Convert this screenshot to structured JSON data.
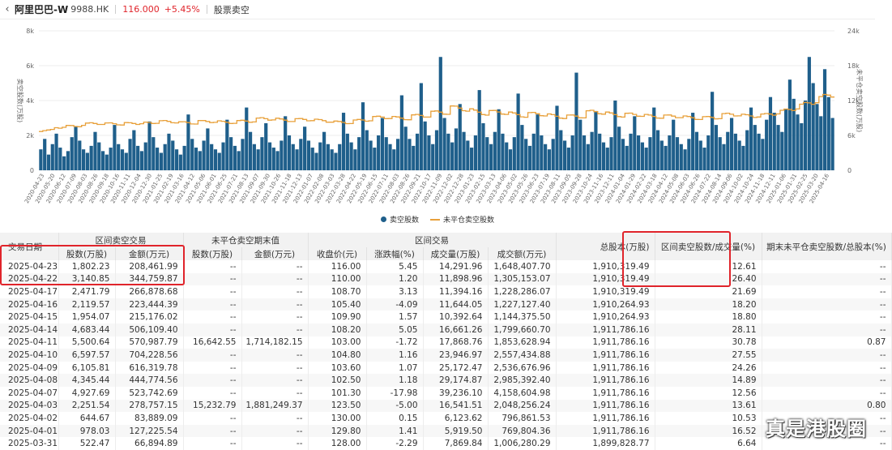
{
  "header": {
    "back": "‹",
    "name": "阿里巴巴-W",
    "code": "9988.HK",
    "price": "116.000",
    "change": "+5.45%",
    "page": "股票卖空"
  },
  "legend": {
    "bars": "卖空股数",
    "line": "未平仓卖空股数"
  },
  "colors": {
    "bar": "#1f5f8b",
    "line": "#e8a03a",
    "up": "#e0242b"
  },
  "chart_data": {
    "type": "bar",
    "left_axis": {
      "label": "卖空股数(万股)",
      "ticks": [
        "0",
        "2k",
        "4k",
        "6k",
        "8k"
      ],
      "range": [
        0,
        8000
      ]
    },
    "right_axis": {
      "label": "未平仓卖空股数(万股)",
      "ticks": [
        "0",
        "6k",
        "12k",
        "18k",
        "24k"
      ],
      "range": [
        0,
        24000
      ]
    },
    "x_labels": [
      "2020-04-23",
      "2020-05-20",
      "2020-06-12",
      "2020-07-09",
      "2020-08-03",
      "2020-08-26",
      "2020-09-18",
      "2020-10-16",
      "2020-11-11",
      "2020-12-04",
      "2020-12-30",
      "2021-01-25",
      "2021-02-19",
      "2021-03-16",
      "2021-04-12",
      "2021-05-06",
      "2021-06-01",
      "2021-06-25",
      "2021-07-21",
      "2021-08-13",
      "2021-09-07",
      "2021-09-30",
      "2021-10-26",
      "2021-11-18",
      "2021-12-13",
      "2022-01-07",
      "2022-02-08",
      "2022-03-03",
      "2022-03-28",
      "2022-04-22",
      "2022-05-19",
      "2022-06-15",
      "2022-07-11",
      "2022-08-03",
      "2022-08-26",
      "2022-09-21",
      "2022-10-17",
      "2022-11-09",
      "2022-12-02",
      "2022-12-28",
      "2023-01-23",
      "2023-02-15",
      "2023-03-13",
      "2023-04-06",
      "2023-05-02",
      "2023-05-26",
      "2023-06-23",
      "2023-07-19",
      "2023-08-11",
      "2023-09-05",
      "2023-09-28",
      "2023-10-24",
      "2023-11-16",
      "2023-12-11",
      "2024-01-04",
      "2024-01-29",
      "2024-02-22",
      "2024-03-18",
      "2024-04-12",
      "2024-05-08",
      "2024-06-03",
      "2024-06-26",
      "2024-07-22",
      "2024-08-14",
      "2024-09-06",
      "2024-10-02",
      "2024-10-24",
      "2024-11-18",
      "2024-12-11",
      "2025-01-06",
      "2025-01-31",
      "2025-02-25",
      "2025-03-20",
      "2025-04-16"
    ],
    "bars": [
      1200,
      1800,
      900,
      1500,
      2100,
      1300,
      800,
      1100,
      1900,
      2500,
      1700,
      1200,
      1000,
      1400,
      2200,
      1600,
      1100,
      900,
      1300,
      2600,
      1500,
      1200,
      1000,
      1800,
      2300,
      1400,
      1100,
      1600,
      2800,
      1900,
      1300,
      1000,
      1500,
      2100,
      1700,
      1200,
      900,
      1400,
      3200,
      1800,
      1300,
      1100,
      1700,
      2400,
      1500,
      1200,
      1000,
      1600,
      2900,
      1900,
      1400,
      1100,
      1800,
      3600,
      2200,
      1500,
      1200,
      1900,
      2700,
      1600,
      1300,
      1100,
      1700,
      3100,
      2000,
      1500,
      1200,
      1800,
      2500,
      1700,
      1300,
      1000,
      1600,
      2200,
      1500,
      1200,
      1000,
      1500,
      3300,
      2100,
      1600,
      1200,
      1900,
      3900,
      2300,
      1700,
      1300,
      2000,
      3000,
      1900,
      1500,
      1200,
      1800,
      4300,
      2500,
      1800,
      1400,
      2100,
      5000,
      2800,
      2000,
      1500,
      2300,
      6500,
      3000,
      2100,
      1600,
      2400,
      3800,
      2200,
      1700,
      1300,
      2000,
      4600,
      2700,
      1900,
      1500,
      2200,
      3500,
      2100,
      1600,
      1200,
      1900,
      4400,
      2600,
      1800,
      1400,
      2100,
      3200,
      2000,
      1500,
      1200,
      1800,
      3700,
      2300,
      1700,
      1300,
      2000,
      5600,
      2900,
      2000,
      1500,
      2200,
      3400,
      2100,
      1600,
      1300,
      1900,
      4000,
      2500,
      1800,
      1400,
      2100,
      3100,
      2000,
      1600,
      1300,
      1900,
      3600,
      2300,
      1700,
      1400,
      2000,
      2900,
      1900,
      1500,
      1200,
      1800,
      3300,
      2200,
      1700,
      1300,
      2000,
      4500,
      2600,
      1900,
      1500,
      2200,
      3000,
      2100,
      1700,
      1400,
      2300,
      3600,
      2600,
      2100,
      1800,
      2900,
      4200,
      3300,
      2600,
      2200,
      3500,
      5200,
      4100,
      3200,
      2700,
      4000,
      6500,
      5000,
      3800,
      3100,
      5800,
      4200,
      3000
    ]
  },
  "table": {
    "group_headers": {
      "date": "交易日期",
      "interval_short": "区间卖空交易",
      "open_short": "未平仓卖空期末值",
      "interval_trade": "区间交易",
      "total_shares": "总股本(万股)",
      "ratio_turnover": "区间卖空股数/成交量(%)",
      "ratio_total": "期末未平仓卖空股数/总股本(%)"
    },
    "sub_headers": {
      "shares": "股数(万股)",
      "amount": "金额(万元)",
      "open_shares": "股数(万股)",
      "open_amount": "金额(万元)",
      "close": "收盘价(元)",
      "pct": "涨跌幅(%)",
      "volume": "成交量(万股)",
      "turnover": "成交额(万元)"
    },
    "rows": [
      [
        "2025-04-23",
        "1,802.23",
        "208,461.99",
        "--",
        "--",
        "116.00",
        "5.45",
        "14,291.96",
        "1,648,407.70",
        "1,910,319.49",
        "12.61",
        "--"
      ],
      [
        "2025-04-22",
        "3,140.85",
        "344,759.87",
        "--",
        "--",
        "110.00",
        "1.20",
        "11,898.96",
        "1,305,153.07",
        "1,910,319.49",
        "26.40",
        "--"
      ],
      [
        "2025-04-17",
        "2,471.79",
        "266,878.68",
        "--",
        "--",
        "108.70",
        "3.13",
        "11,394.16",
        "1,228,286.07",
        "1,910,319.49",
        "21.69",
        "--"
      ],
      [
        "2025-04-16",
        "2,119.57",
        "223,444.39",
        "--",
        "--",
        "105.40",
        "-4.09",
        "11,644.05",
        "1,227,127.40",
        "1,910,264.93",
        "18.20",
        "--"
      ],
      [
        "2025-04-15",
        "1,954.07",
        "215,176.02",
        "--",
        "--",
        "109.90",
        "1.57",
        "10,392.64",
        "1,144,375.50",
        "1,910,264.93",
        "18.80",
        "--"
      ],
      [
        "2025-04-14",
        "4,683.44",
        "506,109.40",
        "--",
        "--",
        "108.20",
        "5.05",
        "16,661.26",
        "1,799,660.70",
        "1,911,786.16",
        "28.11",
        "--"
      ],
      [
        "2025-04-11",
        "5,500.64",
        "570,987.79",
        "16,642.55",
        "1,714,182.15",
        "103.00",
        "-1.72",
        "17,868.76",
        "1,853,628.94",
        "1,911,786.16",
        "30.78",
        "0.87"
      ],
      [
        "2025-04-10",
        "6,597.57",
        "704,228.56",
        "--",
        "--",
        "104.80",
        "1.16",
        "23,946.97",
        "2,557,434.88",
        "1,911,786.16",
        "27.55",
        "--"
      ],
      [
        "2025-04-09",
        "6,105.81",
        "616,319.78",
        "--",
        "--",
        "103.60",
        "1.07",
        "25,172.47",
        "2,536,676.96",
        "1,911,786.16",
        "24.26",
        "--"
      ],
      [
        "2025-04-08",
        "4,345.44",
        "444,774.56",
        "--",
        "--",
        "102.50",
        "1.18",
        "29,174.87",
        "2,985,392.40",
        "1,911,786.16",
        "14.89",
        "--"
      ],
      [
        "2025-04-07",
        "4,927.69",
        "523,742.69",
        "--",
        "--",
        "101.30",
        "-17.98",
        "39,236.10",
        "4,158,604.98",
        "1,911,786.16",
        "12.56",
        "--"
      ],
      [
        "2025-04-03",
        "2,251.54",
        "278,757.15",
        "15,232.79",
        "1,881,249.37",
        "123.50",
        "-5.00",
        "16,541.51",
        "2,048,256.24",
        "1,911,786.16",
        "13.61",
        "0.80"
      ],
      [
        "2025-04-02",
        "644.67",
        "83,889.09",
        "--",
        "--",
        "130.00",
        "0.15",
        "6,123.62",
        "796,861.53",
        "1,911,786.16",
        "10.53",
        "--"
      ],
      [
        "2025-04-01",
        "978.03",
        "127,225.54",
        "--",
        "--",
        "129.80",
        "1.41",
        "5,919.50",
        "769,804.36",
        "1,911,786.16",
        "16.52",
        "--"
      ],
      [
        "2025-03-31",
        "522.47",
        "66,894.89",
        "--",
        "--",
        "128.00",
        "-2.29",
        "7,869.84",
        "1,006,280.29",
        "1,899,828.77",
        "6.64",
        "--"
      ]
    ]
  },
  "watermark": "真是港股圈"
}
